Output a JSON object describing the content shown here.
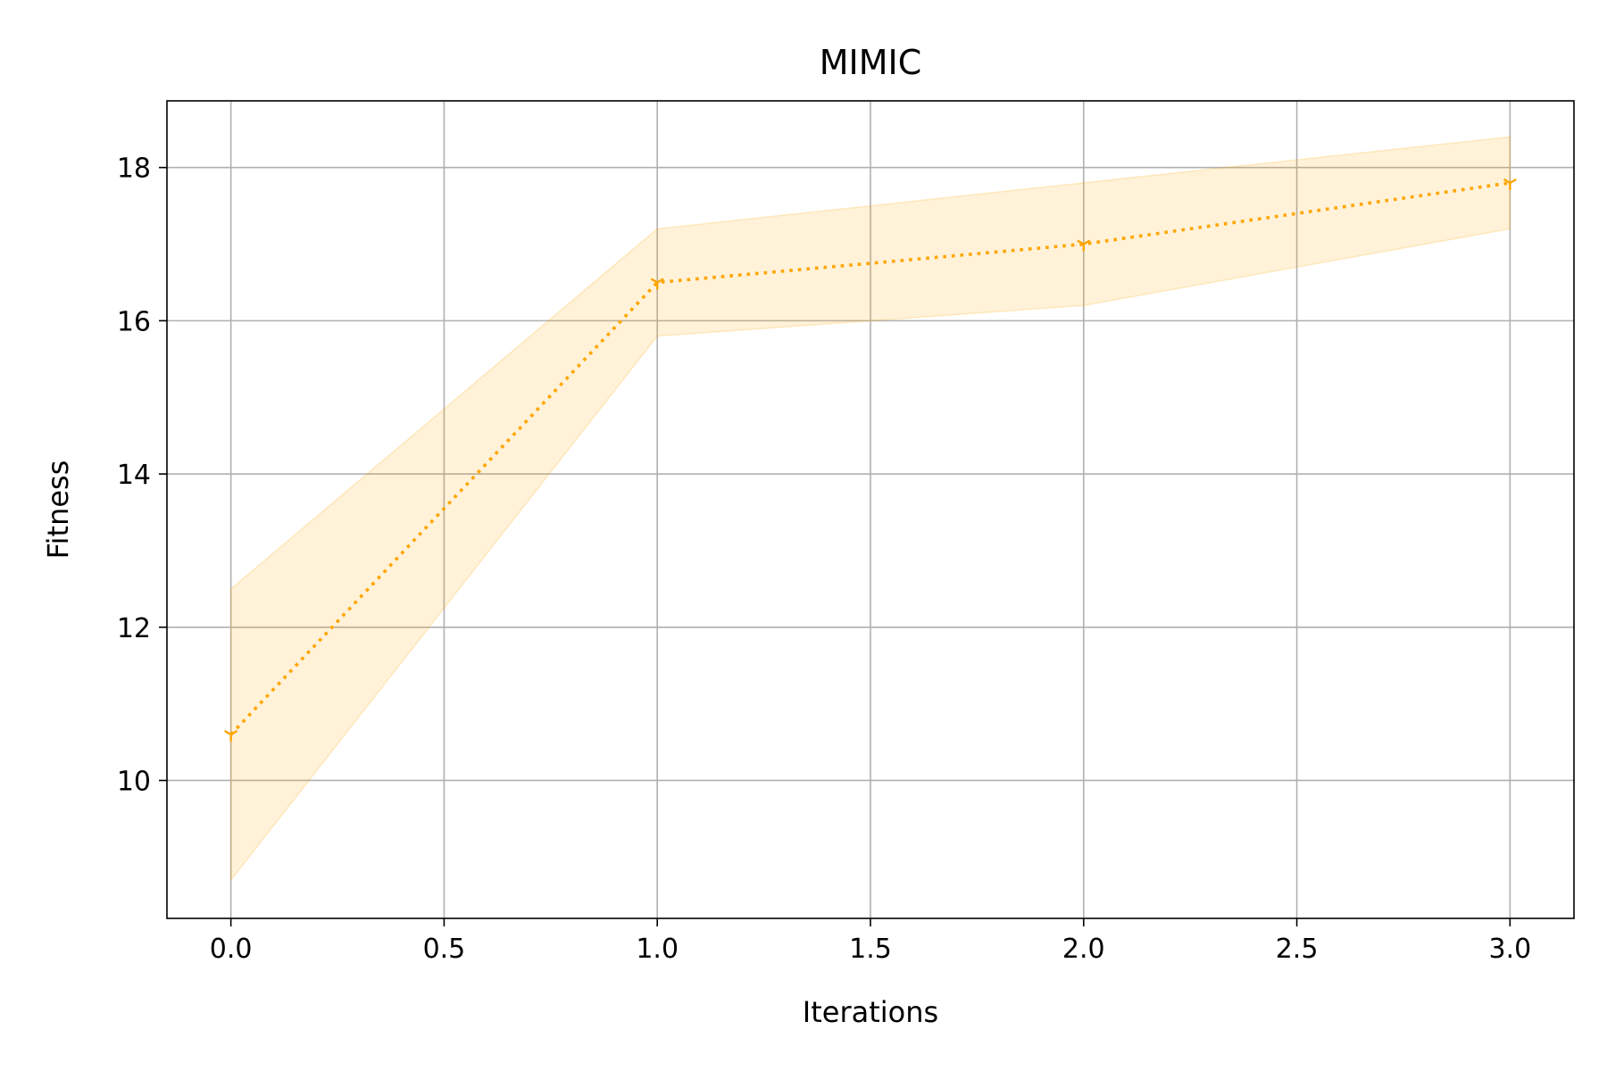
{
  "chart_data": {
    "type": "line",
    "title": "MIMIC",
    "xlabel": "Iterations",
    "ylabel": "Fitness",
    "xlim": [
      -0.15,
      3.15
    ],
    "ylim": [
      8.2,
      18.87
    ],
    "xticks": [
      0.0,
      0.5,
      1.0,
      1.5,
      2.0,
      2.5,
      3.0
    ],
    "xtick_labels": [
      "0.0",
      "0.5",
      "1.0",
      "1.5",
      "2.0",
      "2.5",
      "3.0"
    ],
    "yticks": [
      10,
      12,
      14,
      16,
      18
    ],
    "ytick_labels": [
      "10",
      "12",
      "14",
      "16",
      "18"
    ],
    "grid": true,
    "legend": "none",
    "series": [
      {
        "x": [
          0,
          1,
          2,
          3
        ],
        "y": [
          10.6,
          16.5,
          17.0,
          17.8
        ],
        "lower": [
          8.7,
          15.8,
          16.2,
          17.2
        ],
        "upper": [
          12.5,
          17.2,
          17.8,
          18.4
        ],
        "color": "#ffa500",
        "band_color": "#ffa500",
        "line_style": "dotted",
        "marker": "tri_down"
      }
    ]
  }
}
